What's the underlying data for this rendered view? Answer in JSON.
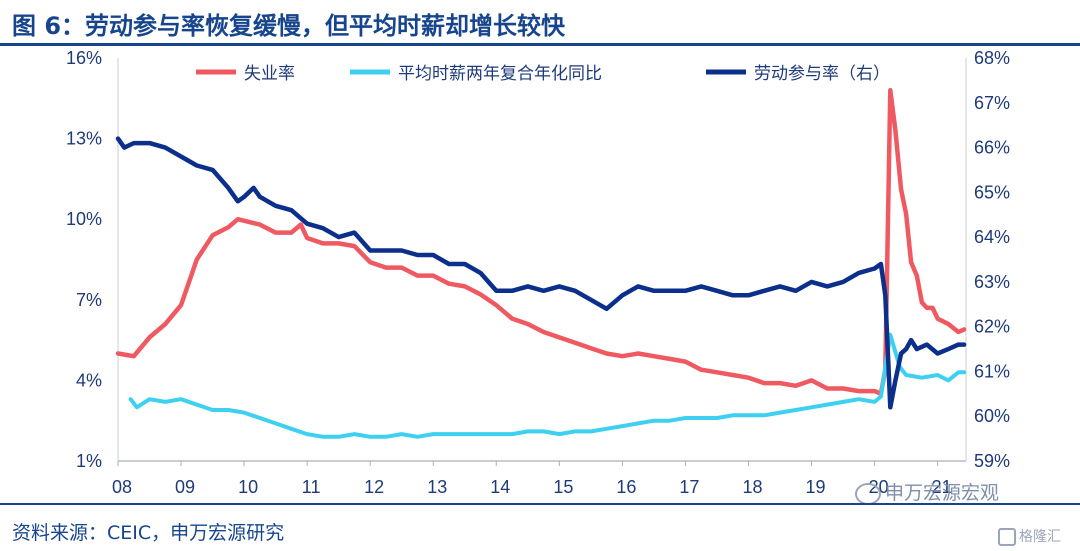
{
  "title": "图 6：劳动参与率恢复缓慢，但平均时薪却增长较快",
  "source": "资料来源：CEIC，申万宏源研究",
  "watermarks": {
    "wechat": "申万宏源宏观",
    "gelonghui": "格隆汇"
  },
  "colors": {
    "unemployment": "#ef5a62",
    "wages": "#3ed0f0",
    "participation": "#0b2f8a",
    "axis": "#1f3a78",
    "title": "#17458d"
  },
  "chart_data": {
    "type": "line",
    "x_ticks": [
      "08",
      "09",
      "10",
      "11",
      "12",
      "13",
      "14",
      "15",
      "16",
      "17",
      "18",
      "19",
      "20",
      "21"
    ],
    "x_range": [
      2008.0,
      2021.45
    ],
    "y_left": {
      "ticks": [
        "1%",
        "4%",
        "7%",
        "10%",
        "13%",
        "16%"
      ],
      "range": [
        1,
        16
      ]
    },
    "y_right": {
      "ticks": [
        "59%",
        "60%",
        "61%",
        "62%",
        "63%",
        "64%",
        "65%",
        "66%",
        "67%",
        "68%"
      ],
      "range": [
        59,
        68
      ]
    },
    "series": [
      {
        "name": "失业率",
        "axis": "left",
        "points": [
          [
            2008.0,
            5.0
          ],
          [
            2008.25,
            4.9
          ],
          [
            2008.5,
            5.6
          ],
          [
            2008.75,
            6.1
          ],
          [
            2009.0,
            6.8
          ],
          [
            2009.25,
            8.5
          ],
          [
            2009.5,
            9.4
          ],
          [
            2009.75,
            9.7
          ],
          [
            2009.9,
            10.0
          ],
          [
            2010.25,
            9.8
          ],
          [
            2010.5,
            9.5
          ],
          [
            2010.75,
            9.5
          ],
          [
            2010.9,
            9.8
          ],
          [
            2011.0,
            9.3
          ],
          [
            2011.25,
            9.1
          ],
          [
            2011.5,
            9.1
          ],
          [
            2011.75,
            9.0
          ],
          [
            2012.0,
            8.4
          ],
          [
            2012.25,
            8.2
          ],
          [
            2012.5,
            8.2
          ],
          [
            2012.75,
            7.9
          ],
          [
            2013.0,
            7.9
          ],
          [
            2013.25,
            7.6
          ],
          [
            2013.5,
            7.5
          ],
          [
            2013.75,
            7.2
          ],
          [
            2014.0,
            6.8
          ],
          [
            2014.25,
            6.3
          ],
          [
            2014.5,
            6.1
          ],
          [
            2014.75,
            5.8
          ],
          [
            2015.0,
            5.6
          ],
          [
            2015.25,
            5.4
          ],
          [
            2015.5,
            5.2
          ],
          [
            2015.75,
            5.0
          ],
          [
            2016.0,
            4.9
          ],
          [
            2016.25,
            5.0
          ],
          [
            2016.5,
            4.9
          ],
          [
            2016.75,
            4.8
          ],
          [
            2017.0,
            4.7
          ],
          [
            2017.25,
            4.4
          ],
          [
            2017.5,
            4.3
          ],
          [
            2017.75,
            4.2
          ],
          [
            2018.0,
            4.1
          ],
          [
            2018.25,
            3.9
          ],
          [
            2018.5,
            3.9
          ],
          [
            2018.75,
            3.8
          ],
          [
            2019.0,
            4.0
          ],
          [
            2019.25,
            3.7
          ],
          [
            2019.5,
            3.7
          ],
          [
            2019.75,
            3.6
          ],
          [
            2020.0,
            3.6
          ],
          [
            2020.1,
            3.5
          ],
          [
            2020.17,
            4.4
          ],
          [
            2020.25,
            14.8
          ],
          [
            2020.33,
            13.3
          ],
          [
            2020.42,
            11.1
          ],
          [
            2020.5,
            10.2
          ],
          [
            2020.58,
            8.4
          ],
          [
            2020.67,
            7.9
          ],
          [
            2020.75,
            6.9
          ],
          [
            2020.83,
            6.7
          ],
          [
            2020.92,
            6.7
          ],
          [
            2021.0,
            6.3
          ],
          [
            2021.17,
            6.1
          ],
          [
            2021.33,
            5.8
          ],
          [
            2021.42,
            5.9
          ]
        ]
      },
      {
        "name": "平均时薪两年复合年化同比",
        "axis": "left",
        "points": [
          [
            2008.2,
            3.3
          ],
          [
            2008.3,
            3.0
          ],
          [
            2008.5,
            3.3
          ],
          [
            2008.75,
            3.2
          ],
          [
            2009.0,
            3.3
          ],
          [
            2009.25,
            3.1
          ],
          [
            2009.5,
            2.9
          ],
          [
            2009.75,
            2.9
          ],
          [
            2010.0,
            2.8
          ],
          [
            2010.25,
            2.6
          ],
          [
            2010.5,
            2.4
          ],
          [
            2010.75,
            2.2
          ],
          [
            2011.0,
            2.0
          ],
          [
            2011.25,
            1.9
          ],
          [
            2011.5,
            1.9
          ],
          [
            2011.75,
            2.0
          ],
          [
            2012.0,
            1.9
          ],
          [
            2012.25,
            1.9
          ],
          [
            2012.5,
            2.0
          ],
          [
            2012.75,
            1.9
          ],
          [
            2013.0,
            2.0
          ],
          [
            2013.25,
            2.0
          ],
          [
            2013.5,
            2.0
          ],
          [
            2013.75,
            2.0
          ],
          [
            2014.0,
            2.0
          ],
          [
            2014.25,
            2.0
          ],
          [
            2014.5,
            2.1
          ],
          [
            2014.75,
            2.1
          ],
          [
            2015.0,
            2.0
          ],
          [
            2015.25,
            2.1
          ],
          [
            2015.5,
            2.1
          ],
          [
            2015.75,
            2.2
          ],
          [
            2016.0,
            2.3
          ],
          [
            2016.25,
            2.4
          ],
          [
            2016.5,
            2.5
          ],
          [
            2016.75,
            2.5
          ],
          [
            2017.0,
            2.6
          ],
          [
            2017.25,
            2.6
          ],
          [
            2017.5,
            2.6
          ],
          [
            2017.75,
            2.7
          ],
          [
            2018.0,
            2.7
          ],
          [
            2018.25,
            2.7
          ],
          [
            2018.5,
            2.8
          ],
          [
            2018.75,
            2.9
          ],
          [
            2019.0,
            3.0
          ],
          [
            2019.25,
            3.1
          ],
          [
            2019.5,
            3.2
          ],
          [
            2019.75,
            3.3
          ],
          [
            2020.0,
            3.2
          ],
          [
            2020.1,
            3.4
          ],
          [
            2020.25,
            5.7
          ],
          [
            2020.4,
            4.5
          ],
          [
            2020.5,
            4.2
          ],
          [
            2020.75,
            4.1
          ],
          [
            2021.0,
            4.2
          ],
          [
            2021.17,
            4.0
          ],
          [
            2021.33,
            4.3
          ],
          [
            2021.42,
            4.3
          ]
        ]
      },
      {
        "name": "劳动参与率（右）",
        "axis": "right",
        "points": [
          [
            2008.0,
            66.2
          ],
          [
            2008.1,
            66.0
          ],
          [
            2008.25,
            66.1
          ],
          [
            2008.5,
            66.1
          ],
          [
            2008.75,
            66.0
          ],
          [
            2009.0,
            65.8
          ],
          [
            2009.25,
            65.6
          ],
          [
            2009.5,
            65.5
          ],
          [
            2009.75,
            65.1
          ],
          [
            2009.9,
            64.8
          ],
          [
            2010.0,
            64.9
          ],
          [
            2010.15,
            65.1
          ],
          [
            2010.25,
            64.9
          ],
          [
            2010.5,
            64.7
          ],
          [
            2010.75,
            64.6
          ],
          [
            2011.0,
            64.3
          ],
          [
            2011.25,
            64.2
          ],
          [
            2011.5,
            64.0
          ],
          [
            2011.75,
            64.1
          ],
          [
            2012.0,
            63.7
          ],
          [
            2012.25,
            63.7
          ],
          [
            2012.5,
            63.7
          ],
          [
            2012.75,
            63.6
          ],
          [
            2013.0,
            63.6
          ],
          [
            2013.25,
            63.4
          ],
          [
            2013.5,
            63.4
          ],
          [
            2013.75,
            63.2
          ],
          [
            2014.0,
            62.8
          ],
          [
            2014.25,
            62.8
          ],
          [
            2014.5,
            62.9
          ],
          [
            2014.75,
            62.8
          ],
          [
            2015.0,
            62.9
          ],
          [
            2015.25,
            62.8
          ],
          [
            2015.5,
            62.6
          ],
          [
            2015.75,
            62.4
          ],
          [
            2016.0,
            62.7
          ],
          [
            2016.25,
            62.9
          ],
          [
            2016.5,
            62.8
          ],
          [
            2016.75,
            62.8
          ],
          [
            2017.0,
            62.8
          ],
          [
            2017.25,
            62.9
          ],
          [
            2017.5,
            62.8
          ],
          [
            2017.75,
            62.7
          ],
          [
            2018.0,
            62.7
          ],
          [
            2018.25,
            62.8
          ],
          [
            2018.5,
            62.9
          ],
          [
            2018.75,
            62.8
          ],
          [
            2019.0,
            63.0
          ],
          [
            2019.25,
            62.9
          ],
          [
            2019.5,
            63.0
          ],
          [
            2019.75,
            63.2
          ],
          [
            2020.0,
            63.3
          ],
          [
            2020.1,
            63.4
          ],
          [
            2020.17,
            62.7
          ],
          [
            2020.25,
            60.2
          ],
          [
            2020.33,
            60.8
          ],
          [
            2020.42,
            61.4
          ],
          [
            2020.5,
            61.5
          ],
          [
            2020.58,
            61.7
          ],
          [
            2020.67,
            61.5
          ],
          [
            2020.83,
            61.6
          ],
          [
            2021.0,
            61.4
          ],
          [
            2021.17,
            61.5
          ],
          [
            2021.33,
            61.6
          ],
          [
            2021.42,
            61.6
          ]
        ]
      }
    ]
  }
}
